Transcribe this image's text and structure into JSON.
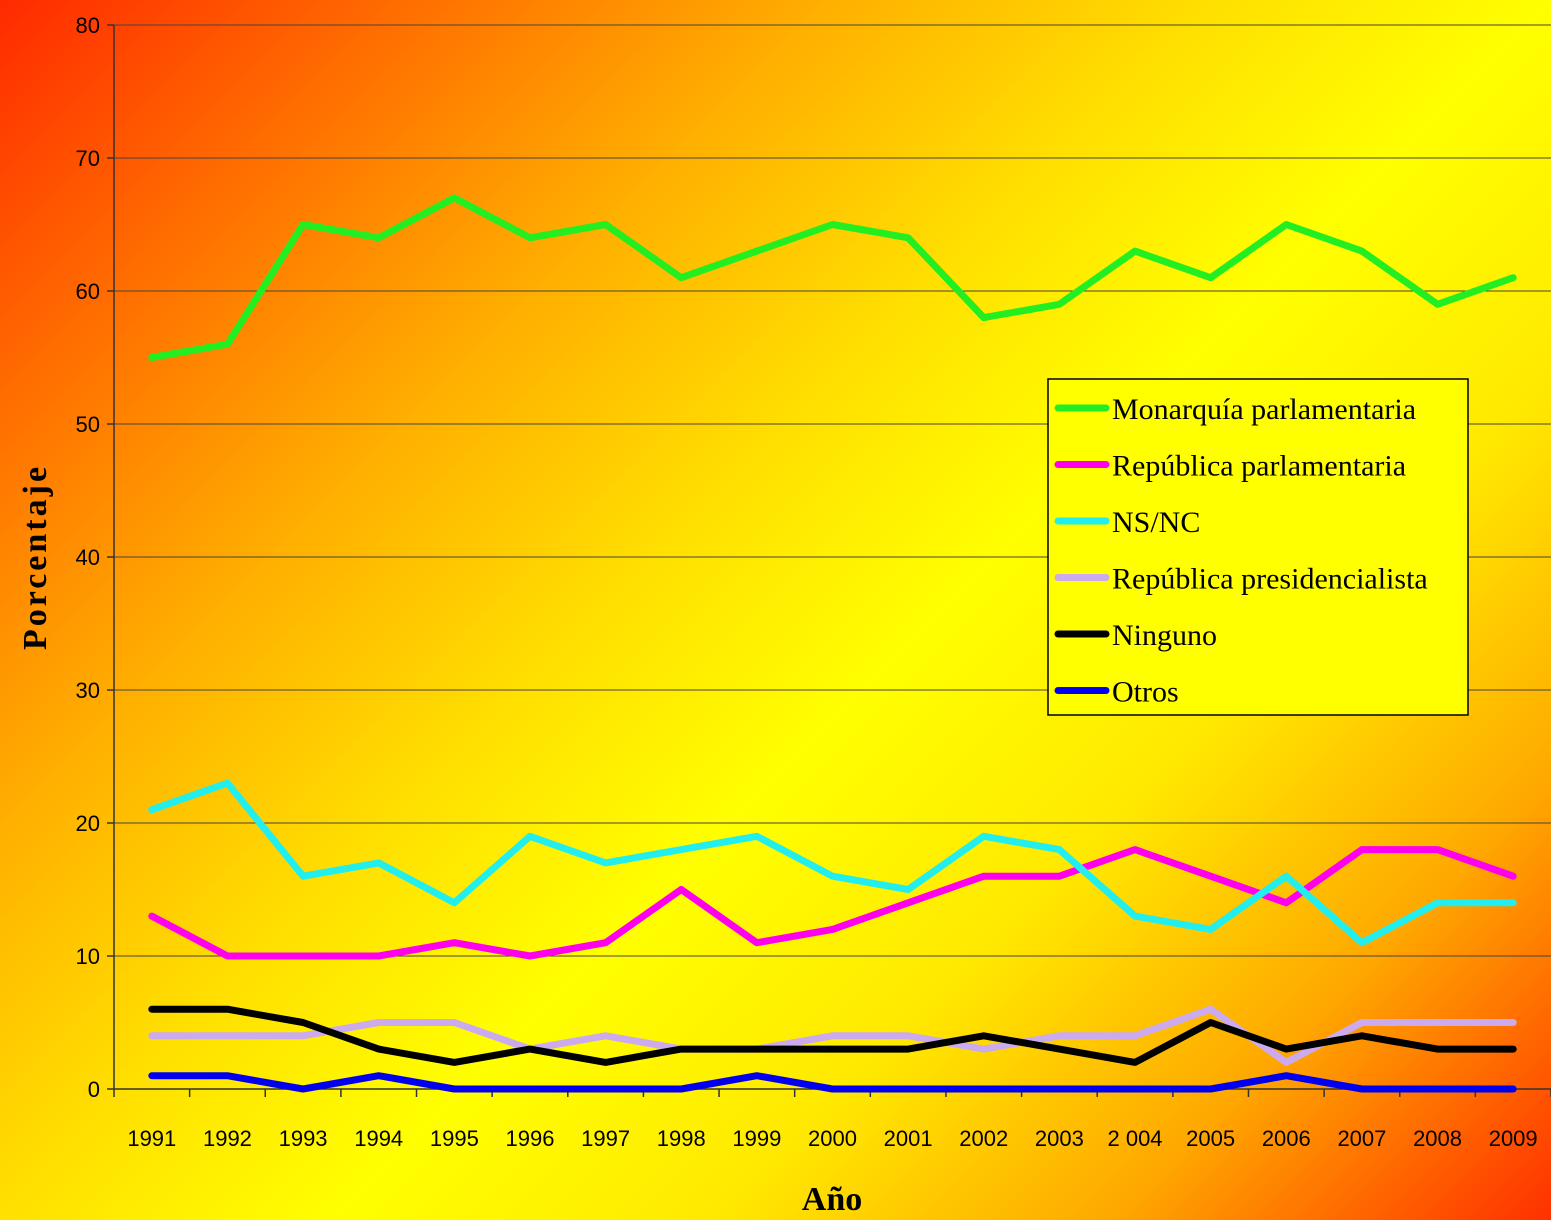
{
  "chart_data": {
    "type": "line",
    "title": "",
    "xlabel": "Año",
    "ylabel": "Porcentaje",
    "ylim": [
      0,
      80
    ],
    "yticks": [
      "0",
      "10",
      "20",
      "30",
      "40",
      "50",
      "60",
      "70",
      "80"
    ],
    "categories": [
      "1991",
      "1992",
      "1993",
      "1994",
      "1995",
      "1996",
      "1997",
      "1998",
      "1999",
      "2000",
      "2001",
      "2002",
      "2003",
      "2 004",
      "2005",
      "2006",
      "2007",
      "2008",
      "2009"
    ],
    "grid": "horizontal",
    "legend_position": "right",
    "series": [
      {
        "name": "Monarquía parlamentaria",
        "color": "#22ee22",
        "values": [
          55,
          56,
          65,
          64,
          67,
          64,
          65,
          61,
          63,
          65,
          64,
          58,
          59,
          63,
          61,
          65,
          63,
          59,
          61
        ]
      },
      {
        "name": "República parlamentaria",
        "color": "#ff00ee",
        "values": [
          13,
          10,
          10,
          10,
          11,
          10,
          11,
          15,
          11,
          12,
          14,
          16,
          16,
          18,
          16,
          14,
          18,
          18,
          16
        ]
      },
      {
        "name": "NS/NC",
        "color": "#22eeee",
        "values": [
          21,
          23,
          16,
          17,
          14,
          19,
          17,
          18,
          19,
          16,
          15,
          19,
          18,
          13,
          12,
          16,
          11,
          14,
          14
        ]
      },
      {
        "name": "República presidencialista",
        "color": "#ccaaee",
        "values": [
          4,
          4,
          4,
          5,
          5,
          3,
          4,
          3,
          3,
          4,
          4,
          3,
          4,
          4,
          6,
          2,
          5,
          5,
          5
        ]
      },
      {
        "name": "Ninguno",
        "color": "#000000",
        "values": [
          6,
          6,
          5,
          3,
          2,
          3,
          2,
          3,
          3,
          3,
          3,
          4,
          3,
          2,
          5,
          3,
          4,
          3,
          3
        ]
      },
      {
        "name": "Otros",
        "color": "#0000ee",
        "values": [
          1,
          1,
          0,
          1,
          0,
          0,
          0,
          0,
          1,
          0,
          0,
          0,
          0,
          0,
          0,
          1,
          0,
          0,
          0
        ]
      }
    ]
  }
}
